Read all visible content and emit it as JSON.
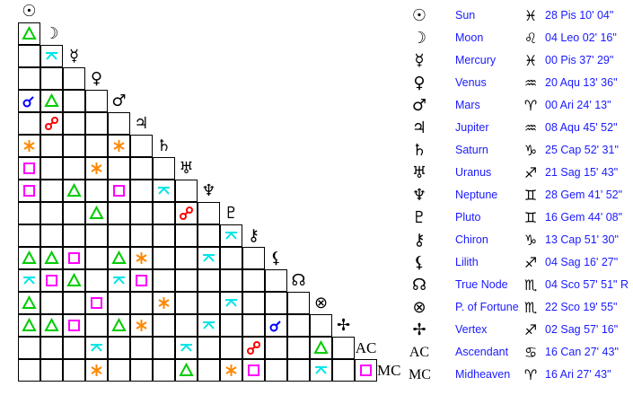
{
  "colors": {
    "trine": "#00cc00",
    "quincunx": "#00e5e5",
    "conjunction": "#0000ff",
    "opposition": "#ff0000",
    "sextile": "#ff8800",
    "square": "#ff00ff"
  },
  "points": [
    {
      "name": "Sun",
      "glyph": "☉",
      "icon": "sun-icon",
      "sign": "♓",
      "position": "28 Pis 10' 04\""
    },
    {
      "name": "Moon",
      "glyph": "☽",
      "icon": "moon-icon",
      "sign": "♌",
      "position": "04 Leo 02' 16\""
    },
    {
      "name": "Mercury",
      "glyph": "☿",
      "icon": "mercury-icon",
      "sign": "♓",
      "position": "00 Pis 37' 29\""
    },
    {
      "name": "Venus",
      "glyph": "♀",
      "icon": "venus-icon",
      "sign": "♒",
      "position": "20 Aqu 13' 36\""
    },
    {
      "name": "Mars",
      "glyph": "♂",
      "icon": "mars-icon",
      "sign": "♈",
      "position": "00 Ari 24' 13\""
    },
    {
      "name": "Jupiter",
      "glyph": "♃",
      "icon": "jupiter-icon",
      "sign": "♒",
      "position": "08 Aqu 45' 52\""
    },
    {
      "name": "Saturn",
      "glyph": "♄",
      "icon": "saturn-icon",
      "sign": "♑",
      "position": "25 Cap 52' 31\""
    },
    {
      "name": "Uranus",
      "glyph": "♅",
      "icon": "uranus-icon",
      "sign": "♐",
      "position": "21 Sag 15' 43\""
    },
    {
      "name": "Neptune",
      "glyph": "♆",
      "icon": "neptune-icon",
      "sign": "♊",
      "position": "28 Gem 41' 52\""
    },
    {
      "name": "Pluto",
      "glyph": "♇",
      "icon": "pluto-icon",
      "sign": "♊",
      "position": "16 Gem 44' 08\""
    },
    {
      "name": "Chiron",
      "glyph": "⚷",
      "icon": "chiron-icon",
      "sign": "♑",
      "position": "13 Cap 51' 30\""
    },
    {
      "name": "Lilith",
      "glyph": "⚸",
      "icon": "lilith-icon",
      "sign": "♐",
      "position": "04 Sag 16' 27\""
    },
    {
      "name": "True Node",
      "glyph": "☊",
      "icon": "true-node-icon",
      "sign": "♏",
      "position": "04 Sco 57' 51\" R"
    },
    {
      "name": "P. of Fortune",
      "glyph": "⊗",
      "icon": "part-of-fortune-icon",
      "sign": "♏",
      "position": "22 Sco 19' 55\""
    },
    {
      "name": "Vertex",
      "glyph": "✢",
      "icon": "vertex-icon",
      "sign": "♐",
      "position": "02 Sag 57' 16\""
    },
    {
      "name": "Ascendant",
      "glyph": "AC",
      "icon": "ascendant-icon",
      "sign": "♋",
      "position": "16 Can 27' 43\""
    },
    {
      "name": "Midheaven",
      "glyph": "MC",
      "icon": "midheaven-icon",
      "sign": "♈",
      "position": "16 Ari 27' 43\""
    }
  ],
  "aspects": [
    {
      "row": 1,
      "col": 0,
      "type": "trine"
    },
    {
      "row": 2,
      "col": 1,
      "type": "quincunx"
    },
    {
      "row": 4,
      "col": 0,
      "type": "conjunction"
    },
    {
      "row": 4,
      "col": 1,
      "type": "trine"
    },
    {
      "row": 5,
      "col": 1,
      "type": "opposition"
    },
    {
      "row": 6,
      "col": 0,
      "type": "sextile"
    },
    {
      "row": 6,
      "col": 4,
      "type": "sextile"
    },
    {
      "row": 7,
      "col": 0,
      "type": "square"
    },
    {
      "row": 7,
      "col": 3,
      "type": "sextile"
    },
    {
      "row": 8,
      "col": 0,
      "type": "square"
    },
    {
      "row": 8,
      "col": 2,
      "type": "trine"
    },
    {
      "row": 8,
      "col": 4,
      "type": "square"
    },
    {
      "row": 8,
      "col": 6,
      "type": "quincunx"
    },
    {
      "row": 9,
      "col": 3,
      "type": "trine"
    },
    {
      "row": 9,
      "col": 7,
      "type": "opposition"
    },
    {
      "row": 10,
      "col": 9,
      "type": "quincunx"
    },
    {
      "row": 11,
      "col": 0,
      "type": "trine"
    },
    {
      "row": 11,
      "col": 1,
      "type": "trine"
    },
    {
      "row": 11,
      "col": 2,
      "type": "square"
    },
    {
      "row": 11,
      "col": 4,
      "type": "trine"
    },
    {
      "row": 11,
      "col": 5,
      "type": "sextile"
    },
    {
      "row": 11,
      "col": 8,
      "type": "quincunx"
    },
    {
      "row": 12,
      "col": 0,
      "type": "quincunx"
    },
    {
      "row": 12,
      "col": 1,
      "type": "square"
    },
    {
      "row": 12,
      "col": 2,
      "type": "trine"
    },
    {
      "row": 12,
      "col": 4,
      "type": "quincunx"
    },
    {
      "row": 12,
      "col": 5,
      "type": "square"
    },
    {
      "row": 13,
      "col": 0,
      "type": "trine"
    },
    {
      "row": 13,
      "col": 3,
      "type": "square"
    },
    {
      "row": 13,
      "col": 6,
      "type": "sextile"
    },
    {
      "row": 13,
      "col": 9,
      "type": "quincunx"
    },
    {
      "row": 14,
      "col": 0,
      "type": "trine"
    },
    {
      "row": 14,
      "col": 1,
      "type": "trine"
    },
    {
      "row": 14,
      "col": 2,
      "type": "square"
    },
    {
      "row": 14,
      "col": 4,
      "type": "trine"
    },
    {
      "row": 14,
      "col": 5,
      "type": "sextile"
    },
    {
      "row": 14,
      "col": 8,
      "type": "quincunx"
    },
    {
      "row": 14,
      "col": 11,
      "type": "conjunction"
    },
    {
      "row": 15,
      "col": 3,
      "type": "quincunx"
    },
    {
      "row": 15,
      "col": 7,
      "type": "quincunx"
    },
    {
      "row": 15,
      "col": 10,
      "type": "opposition"
    },
    {
      "row": 15,
      "col": 13,
      "type": "trine"
    },
    {
      "row": 16,
      "col": 3,
      "type": "sextile"
    },
    {
      "row": 16,
      "col": 7,
      "type": "trine"
    },
    {
      "row": 16,
      "col": 9,
      "type": "sextile"
    },
    {
      "row": 16,
      "col": 10,
      "type": "square"
    },
    {
      "row": 16,
      "col": 13,
      "type": "quincunx"
    },
    {
      "row": 16,
      "col": 15,
      "type": "square"
    }
  ]
}
